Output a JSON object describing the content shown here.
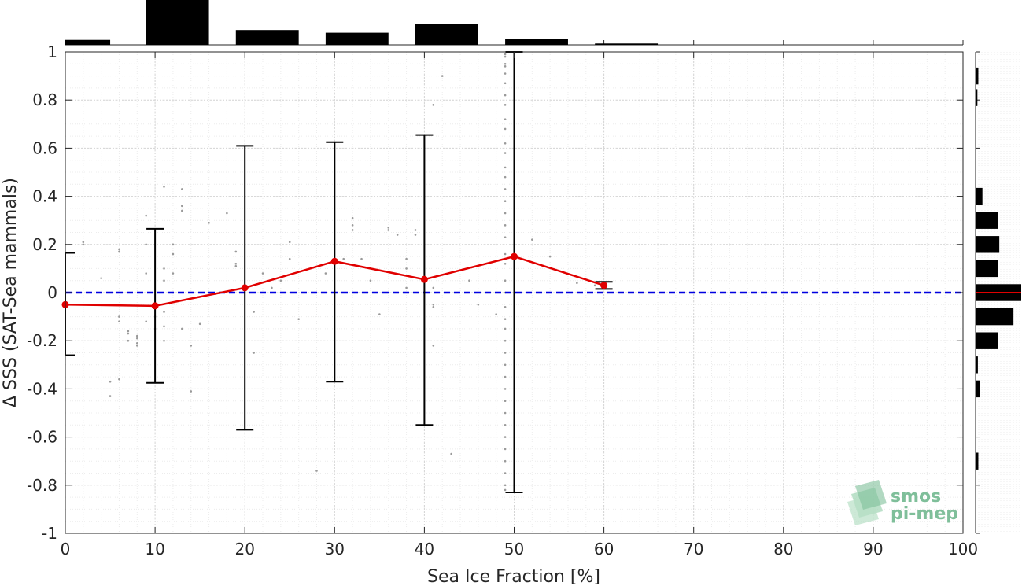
{
  "chart_data": {
    "type": "line",
    "title": "",
    "xlabel": "Sea Ice Fraction [%]",
    "ylabel": "Δ SSS (SAT-Sea mammals)",
    "xlim": [
      0,
      100
    ],
    "ylim": [
      -1,
      1
    ],
    "xticks": [
      "0",
      "10",
      "20",
      "30",
      "40",
      "50",
      "60",
      "70",
      "80",
      "90",
      "100"
    ],
    "yticks": [
      "-1",
      "-0.8",
      "-0.6",
      "-0.4",
      "-0.2",
      "0",
      "0.2",
      "0.4",
      "0.6",
      "0.8",
      "1"
    ],
    "grid": true,
    "reference_line": {
      "y": 0,
      "color": "#0000e0",
      "style": "dashed"
    },
    "mean_series": {
      "color": "#e00000",
      "x": [
        0,
        10,
        20,
        30,
        40,
        50,
        60
      ],
      "y": [
        -0.05,
        -0.055,
        0.02,
        0.13,
        0.055,
        0.15,
        0.03
      ],
      "err_low": [
        -0.26,
        -0.375,
        -0.57,
        -0.37,
        -0.55,
        -0.83,
        0.015
      ],
      "err_high": [
        0.165,
        0.265,
        0.61,
        0.625,
        0.655,
        1.0,
        0.045
      ]
    },
    "scatter_points": [
      [
        2,
        0.2
      ],
      [
        2,
        0.21
      ],
      [
        4,
        0.06
      ],
      [
        5,
        -0.37
      ],
      [
        5,
        -0.43
      ],
      [
        6,
        0.17
      ],
      [
        6,
        0.18
      ],
      [
        6,
        -0.1
      ],
      [
        6,
        -0.12
      ],
      [
        6,
        -0.36
      ],
      [
        7,
        -0.16
      ],
      [
        7,
        -0.17
      ],
      [
        7,
        -0.2
      ],
      [
        8,
        -0.18
      ],
      [
        8,
        -0.19
      ],
      [
        8,
        -0.21
      ],
      [
        8,
        -0.22
      ],
      [
        9,
        0.32
      ],
      [
        9,
        0.2
      ],
      [
        9,
        0.08
      ],
      [
        9,
        -0.12
      ],
      [
        10,
        -0.1
      ],
      [
        10,
        -0.15
      ],
      [
        11,
        0.44
      ],
      [
        11,
        0.1
      ],
      [
        11,
        0.05
      ],
      [
        11,
        -0.08
      ],
      [
        11,
        -0.14
      ],
      [
        11,
        -0.2
      ],
      [
        12,
        0.2
      ],
      [
        12,
        0.16
      ],
      [
        12,
        0.08
      ],
      [
        12,
        0.0
      ],
      [
        13,
        0.43
      ],
      [
        13,
        0.36
      ],
      [
        13,
        0.34
      ],
      [
        13,
        -0.15
      ],
      [
        14,
        -0.22
      ],
      [
        14,
        -0.41
      ],
      [
        15,
        -0.13
      ],
      [
        16,
        0.29
      ],
      [
        18,
        0.33
      ],
      [
        19,
        0.17
      ],
      [
        19,
        0.12
      ],
      [
        19,
        0.11
      ],
      [
        21,
        -0.08
      ],
      [
        21,
        -0.25
      ],
      [
        22,
        0.08
      ],
      [
        23,
        0.02
      ],
      [
        24,
        0.05
      ],
      [
        25,
        0.21
      ],
      [
        25,
        0.14
      ],
      [
        26,
        -0.11
      ],
      [
        28,
        -0.74
      ],
      [
        29,
        0.08
      ],
      [
        31,
        0.14
      ],
      [
        32,
        0.31
      ],
      [
        32,
        0.28
      ],
      [
        32,
        0.26
      ],
      [
        33,
        0.14
      ],
      [
        34,
        0.05
      ],
      [
        35,
        -0.09
      ],
      [
        36,
        0.27
      ],
      [
        36,
        0.26
      ],
      [
        37,
        0.24
      ],
      [
        38,
        0.1
      ],
      [
        38,
        0.14
      ],
      [
        38,
        0.02
      ],
      [
        39,
        0.26
      ],
      [
        39,
        0.24
      ],
      [
        41,
        0.78
      ],
      [
        41,
        0.02
      ],
      [
        41,
        -0.05
      ],
      [
        41,
        -0.06
      ],
      [
        41,
        -0.22
      ],
      [
        42,
        0.9
      ],
      [
        43,
        -0.67
      ],
      [
        45,
        0.05
      ],
      [
        46,
        -0.05
      ],
      [
        48,
        -0.09
      ],
      [
        49,
        0.23
      ],
      [
        49,
        0.16
      ],
      [
        49,
        0.12
      ],
      [
        49,
        0.05
      ],
      [
        49,
        0.0
      ],
      [
        49,
        -0.06
      ],
      [
        49,
        -0.11
      ],
      [
        49,
        -0.15
      ],
      [
        49,
        -0.2
      ],
      [
        49,
        -0.25
      ],
      [
        49,
        -0.3
      ],
      [
        49,
        -0.35
      ],
      [
        49,
        -0.4
      ],
      [
        49,
        -0.45
      ],
      [
        49,
        -0.5
      ],
      [
        49,
        -0.55
      ],
      [
        49,
        -0.6
      ],
      [
        49,
        -0.65
      ],
      [
        49,
        -0.7
      ],
      [
        49,
        -0.75
      ],
      [
        49,
        -0.8
      ],
      [
        49,
        -0.82
      ],
      [
        49,
        0.28
      ],
      [
        49,
        0.33
      ],
      [
        49,
        0.38
      ],
      [
        49,
        0.43
      ],
      [
        49,
        0.48
      ],
      [
        49,
        0.52
      ],
      [
        49,
        0.58
      ],
      [
        49,
        0.62
      ],
      [
        49,
        0.68
      ],
      [
        49,
        0.72
      ],
      [
        49,
        0.78
      ],
      [
        49,
        0.82
      ],
      [
        49,
        0.87
      ],
      [
        49,
        0.91
      ],
      [
        49,
        0.95
      ],
      [
        49,
        0.98
      ],
      [
        49,
        0.99
      ],
      [
        49,
        0.94
      ],
      [
        50,
        0.42
      ],
      [
        52,
        0.22
      ],
      [
        54,
        0.15
      ],
      [
        57,
        0.04
      ],
      [
        59,
        0.03
      ]
    ],
    "top_histogram": {
      "bin_centers": [
        2.5,
        12.5,
        22.5,
        32.5,
        42.5,
        52.5,
        62.5
      ],
      "bin_widths": [
        5,
        7,
        7,
        7,
        7,
        7,
        7
      ],
      "relative_heights": [
        0.11,
        1.0,
        0.33,
        0.27,
        0.46,
        0.14,
        0.03
      ]
    },
    "right_histogram": {
      "bin_centers": [
        0.9,
        0.81,
        0.4,
        0.3,
        0.2,
        0.1,
        0.0,
        -0.1,
        -0.2,
        -0.3,
        -0.4,
        -0.7
      ],
      "relative_lengths": [
        0.06,
        0.04,
        0.15,
        0.5,
        0.52,
        0.5,
        1.0,
        0.83,
        0.5,
        0.05,
        0.1,
        0.06
      ],
      "mean_line_y": 0,
      "mean_line_color": "#e00000"
    }
  },
  "logo": {
    "line1": "smos",
    "line2": "pi-mep"
  }
}
